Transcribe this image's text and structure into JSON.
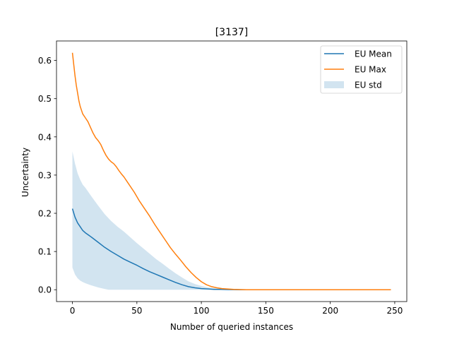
{
  "chart_data": {
    "type": "line",
    "title": "[3137]",
    "xlabel": "Number of queried instances",
    "ylabel": "Uncertainty",
    "xlim": [
      -12.35,
      259.35
    ],
    "ylim": [
      -0.031,
      0.651
    ],
    "xticks": [
      0,
      50,
      100,
      150,
      200,
      250
    ],
    "yticks": [
      0.0,
      0.1,
      0.2,
      0.3,
      0.4,
      0.5,
      0.6
    ],
    "xtick_labels": [
      "0",
      "50",
      "100",
      "150",
      "200",
      "250"
    ],
    "ytick_labels": [
      "0.0",
      "0.1",
      "0.2",
      "0.3",
      "0.4",
      "0.5",
      "0.6"
    ],
    "grid": false,
    "legend_position": "upper right",
    "legend": [
      "EU Mean",
      "EU Max",
      "EU std"
    ],
    "series": [
      {
        "name": "EU Mean",
        "color": "#1f77b4",
        "x": [
          0,
          2,
          4,
          6,
          8,
          10,
          15,
          20,
          25,
          30,
          35,
          40,
          45,
          50,
          55,
          60,
          65,
          70,
          75,
          80,
          85,
          90,
          95,
          100,
          105,
          110,
          115,
          120,
          130,
          140,
          150,
          200,
          247
        ],
        "y": [
          0.212,
          0.19,
          0.175,
          0.165,
          0.155,
          0.149,
          0.137,
          0.124,
          0.111,
          0.1,
          0.09,
          0.08,
          0.072,
          0.064,
          0.055,
          0.047,
          0.04,
          0.033,
          0.026,
          0.019,
          0.013,
          0.008,
          0.005,
          0.003,
          0.002,
          0.001,
          0.001,
          0.0005,
          0.0,
          0.0,
          0.0,
          0.0,
          0.0
        ]
      },
      {
        "name": "EU Max",
        "color": "#ff7f0e",
        "x": [
          0,
          1,
          2,
          3,
          4,
          5,
          6,
          7,
          8,
          10,
          12,
          14,
          16,
          18,
          20,
          22,
          24,
          26,
          28,
          30,
          32,
          34,
          36,
          38,
          40,
          44,
          48,
          52,
          56,
          60,
          64,
          68,
          72,
          76,
          80,
          84,
          88,
          92,
          96,
          100,
          104,
          108,
          112,
          116,
          120,
          125,
          130,
          135,
          140,
          150,
          200,
          247
        ],
        "y": [
          0.62,
          0.59,
          0.56,
          0.535,
          0.515,
          0.495,
          0.48,
          0.47,
          0.46,
          0.45,
          0.44,
          0.425,
          0.41,
          0.398,
          0.39,
          0.38,
          0.365,
          0.352,
          0.342,
          0.335,
          0.33,
          0.322,
          0.312,
          0.303,
          0.295,
          0.275,
          0.255,
          0.232,
          0.212,
          0.192,
          0.17,
          0.15,
          0.13,
          0.11,
          0.093,
          0.077,
          0.06,
          0.045,
          0.032,
          0.021,
          0.013,
          0.008,
          0.005,
          0.003,
          0.002,
          0.001,
          0.0005,
          0.0,
          0.0,
          0.0,
          0.0,
          0.0
        ]
      }
    ],
    "bands": [
      {
        "name": "EU std",
        "color": "#1f77b4",
        "alpha": 0.2,
        "x": [
          0,
          2,
          4,
          6,
          8,
          10,
          15,
          20,
          25,
          28,
          30,
          35,
          40,
          45,
          50,
          55,
          60,
          65,
          70,
          75,
          80,
          85,
          90,
          95,
          100,
          105,
          110,
          115,
          120,
          130,
          140,
          150,
          200,
          247
        ],
        "upper": [
          0.362,
          0.33,
          0.305,
          0.288,
          0.275,
          0.267,
          0.243,
          0.22,
          0.198,
          0.187,
          0.18,
          0.165,
          0.152,
          0.137,
          0.122,
          0.108,
          0.094,
          0.08,
          0.068,
          0.055,
          0.043,
          0.032,
          0.022,
          0.015,
          0.01,
          0.006,
          0.004,
          0.002,
          0.001,
          0.0,
          0.0,
          0.0,
          0.0,
          0.0
        ],
        "lower": [
          0.058,
          0.04,
          0.03,
          0.024,
          0.02,
          0.017,
          0.011,
          0.006,
          0.002,
          0.0,
          0.0,
          0.0,
          0.0,
          0.0,
          0.0,
          0.0,
          0.0,
          0.0,
          0.0,
          0.0,
          0.0,
          0.0,
          0.0,
          0.0,
          0.0,
          0.0,
          0.0,
          0.0,
          0.0,
          0.0,
          0.0,
          0.0,
          0.0,
          0.0
        ]
      }
    ]
  }
}
